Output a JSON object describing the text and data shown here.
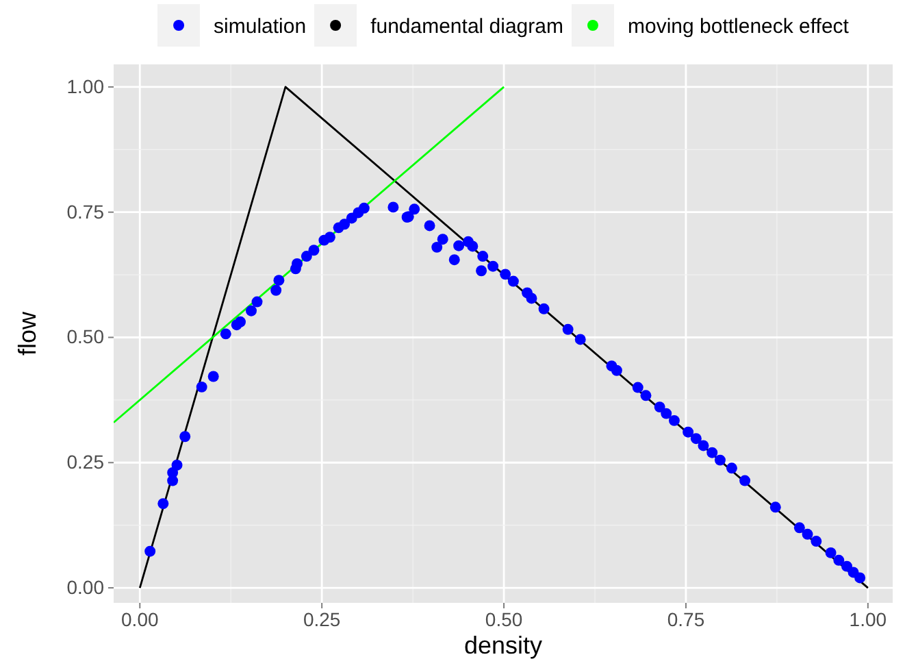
{
  "chart_data": {
    "type": "scatter",
    "xlabel": "density",
    "ylabel": "flow",
    "xlim": [
      -0.036,
      1.034
    ],
    "ylim": [
      -0.03,
      1.045
    ],
    "xticks": [
      {
        "value": 0,
        "label": "0.00"
      },
      {
        "value": 0.25,
        "label": "0.25"
      },
      {
        "value": 0.5,
        "label": "0.50"
      },
      {
        "value": 0.75,
        "label": "0.75"
      },
      {
        "value": 1,
        "label": "1.00"
      }
    ],
    "yticks": [
      {
        "value": 0,
        "label": "0.00"
      },
      {
        "value": 0.25,
        "label": "0.25"
      },
      {
        "value": 0.5,
        "label": "0.50"
      },
      {
        "value": 0.75,
        "label": "0.75"
      },
      {
        "value": 1,
        "label": "1.00"
      }
    ],
    "grid": true,
    "legend": "top",
    "series": [
      {
        "name": "simulation",
        "marker": "circle",
        "color": "#0000ff",
        "x": [
          0.014,
          0.032,
          0.045,
          0.045,
          0.051,
          0.062,
          0.085,
          0.101,
          0.118,
          0.133,
          0.138,
          0.153,
          0.161,
          0.187,
          0.191,
          0.214,
          0.216,
          0.229,
          0.239,
          0.253,
          0.261,
          0.273,
          0.281,
          0.291,
          0.3,
          0.308,
          0.348,
          0.369,
          0.377,
          0.367,
          0.398,
          0.416,
          0.408,
          0.438,
          0.451,
          0.432,
          0.457,
          0.471,
          0.469,
          0.485,
          0.502,
          0.513,
          0.532,
          0.538,
          0.555,
          0.588,
          0.605,
          0.648,
          0.655,
          0.684,
          0.695,
          0.714,
          0.723,
          0.734,
          0.753,
          0.764,
          0.774,
          0.786,
          0.797,
          0.813,
          0.831,
          0.873,
          0.906,
          0.917,
          0.929,
          0.949,
          0.96,
          0.971,
          0.98,
          0.989
        ],
        "values": [
          0.073,
          0.168,
          0.214,
          0.23,
          0.245,
          0.302,
          0.401,
          0.422,
          0.507,
          0.525,
          0.531,
          0.553,
          0.571,
          0.594,
          0.614,
          0.637,
          0.647,
          0.662,
          0.674,
          0.694,
          0.7,
          0.719,
          0.726,
          0.738,
          0.749,
          0.758,
          0.76,
          0.741,
          0.756,
          0.74,
          0.723,
          0.696,
          0.68,
          0.683,
          0.691,
          0.655,
          0.682,
          0.662,
          0.633,
          0.642,
          0.626,
          0.612,
          0.589,
          0.578,
          0.557,
          0.516,
          0.496,
          0.443,
          0.434,
          0.4,
          0.384,
          0.361,
          0.348,
          0.334,
          0.311,
          0.298,
          0.284,
          0.27,
          0.255,
          0.239,
          0.214,
          0.161,
          0.12,
          0.107,
          0.093,
          0.07,
          0.055,
          0.043,
          0.031,
          0.02
        ]
      },
      {
        "name": "fundamental diagram",
        "type": "line",
        "marker": "none",
        "color": "#000000",
        "x": [
          0,
          0.2,
          1
        ],
        "values": [
          0,
          1,
          0
        ]
      },
      {
        "name": "moving bottleneck effect",
        "type": "line",
        "marker": "none",
        "color": "#00ff00",
        "x": [
          -0.036,
          0.5
        ],
        "values": [
          0.33,
          1
        ]
      }
    ]
  }
}
